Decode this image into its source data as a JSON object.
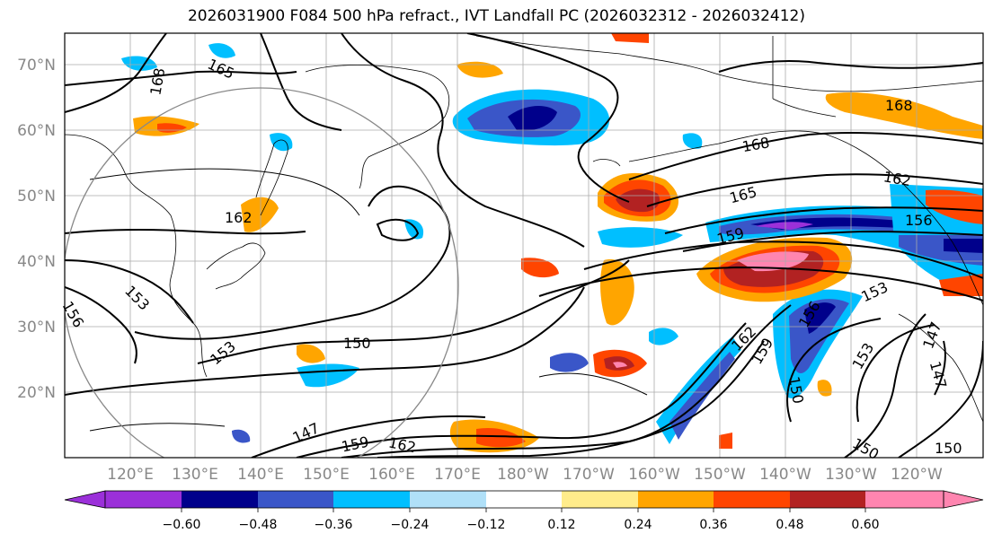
{
  "title": "2026031900 F084 500 hPa refract., IVT Landfall PC (2026032312 - 2026032412)",
  "lat_labels": [
    "70°N",
    "60°N",
    "50°N",
    "40°N",
    "30°N",
    "20°N"
  ],
  "lon_labels": [
    "120°E",
    "130°E",
    "140°E",
    "150°E",
    "160°E",
    "170°E",
    "180°W",
    "170°W",
    "160°W",
    "150°W",
    "140°W",
    "130°W",
    "120°W"
  ],
  "contour_labels": [
    "165",
    "168",
    "162",
    "168",
    "165",
    "162",
    "156",
    "159",
    "153",
    "153",
    "150",
    "147",
    "159",
    "162",
    "156",
    "153",
    "162",
    "159",
    "156",
    "150",
    "153",
    "147",
    "147",
    "150",
    "150",
    "168"
  ],
  "colorbar": {
    "ticks": [
      "−0.60",
      "−0.48",
      "−0.36",
      "−0.24",
      "−0.12",
      "0.12",
      "0.24",
      "0.36",
      "0.48",
      "0.60"
    ],
    "colors": [
      "#9b30d9",
      "#00008b",
      "#3a56c8",
      "#00bfff",
      "#b0e0f8",
      "#ffffff",
      "#ffec8b",
      "#ffa500",
      "#ff4500",
      "#b22222",
      "#ff85b0"
    ]
  }
}
